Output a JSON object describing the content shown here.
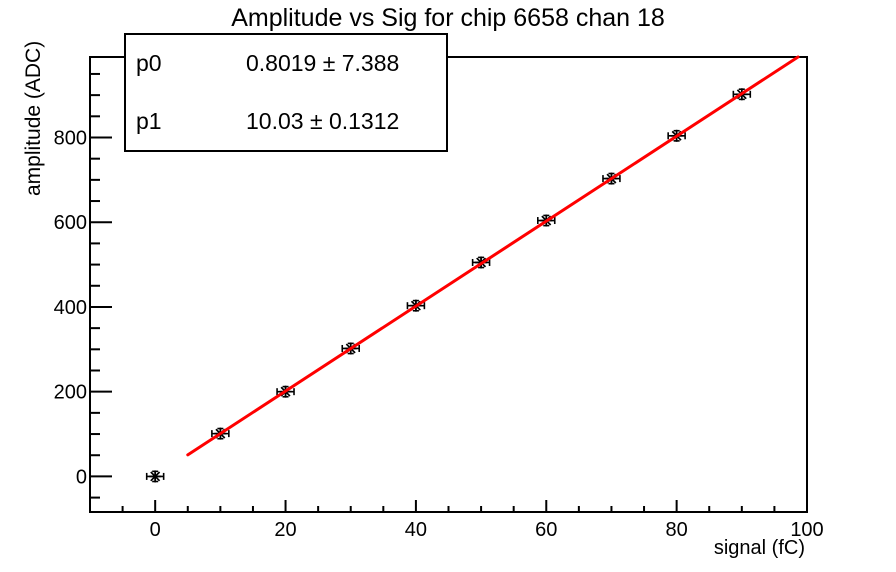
{
  "chart_data": {
    "type": "scatter",
    "title": "Amplitude vs Sig for chip 6658 chan 18",
    "xlabel": "signal (fC)",
    "ylabel": "amplitude (ADC)",
    "xlim": [
      -10,
      100
    ],
    "ylim": [
      -84,
      990
    ],
    "x_major_ticks": [
      0,
      20,
      40,
      60,
      80,
      100
    ],
    "x_minor_step": 5,
    "y_major_ticks": [
      0,
      200,
      400,
      600,
      800
    ],
    "y_minor_step": 50,
    "grid": false,
    "legend": "none",
    "points": {
      "x": [
        0,
        10,
        20,
        30,
        40,
        50,
        60,
        70,
        80,
        90
      ],
      "y": [
        0,
        101,
        200,
        302,
        403,
        505,
        604,
        703,
        804,
        902
      ],
      "err_x": 1.3,
      "err_y": 12,
      "marker": "asterisk",
      "marker_color": "#000000"
    },
    "fit": {
      "type": "pol1",
      "p0": 0.8019,
      "p1": 10.03,
      "x_start": 5,
      "x_end": 100,
      "clip_to_frame": true,
      "color": "#ff0000"
    },
    "axis_color": "#000000",
    "background_color": "#ffffff"
  },
  "stats_box": {
    "rows": [
      {
        "param": "p0",
        "value": "0.8019 ± 7.388"
      },
      {
        "param": "p1",
        "value": "10.03 ± 0.1312"
      }
    ]
  }
}
